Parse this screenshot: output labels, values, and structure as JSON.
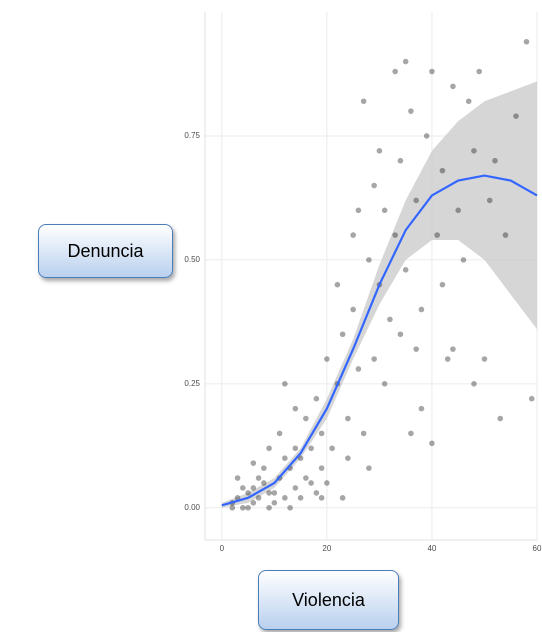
{
  "chart_data": {
    "type": "scatter",
    "y_label": "Denuncia",
    "x_label": "Violencia",
    "xlim": [
      -3.2,
      60
    ],
    "ylim": [
      -0.065,
      1.0
    ],
    "xticks": [
      0,
      20,
      40,
      60
    ],
    "yticks": [
      {
        "value": 0,
        "label": "0.00"
      },
      {
        "value": 0.25,
        "label": "0.25"
      },
      {
        "value": 0.5,
        "label": "0.50"
      },
      {
        "value": 0.75,
        "label": "0.75"
      }
    ],
    "grid": true,
    "point_color": "#000000",
    "line_color": "#3366ff",
    "band_color": "#c8c8c8",
    "points": {
      "x": [
        2,
        3,
        4,
        5,
        6,
        7,
        8,
        9,
        10,
        11,
        12,
        13,
        14,
        15,
        16,
        17,
        18,
        19,
        3,
        6,
        9,
        12,
        14,
        16,
        18,
        19,
        20,
        21,
        22,
        23,
        24,
        25,
        26,
        27,
        28,
        29,
        30,
        31,
        32,
        33,
        34,
        35,
        36,
        37,
        38,
        39,
        40,
        41,
        42,
        43,
        44,
        45,
        46,
        47,
        48,
        49,
        50,
        51,
        52,
        53,
        54,
        56,
        58,
        59,
        27,
        30,
        33,
        35,
        25,
        22,
        20,
        24,
        28,
        36,
        38,
        40,
        44,
        48,
        31,
        34,
        26,
        29,
        37,
        42,
        15,
        8,
        10,
        12,
        5,
        7,
        11,
        13,
        17,
        19,
        23,
        14,
        4,
        2,
        6,
        9
      ],
      "y": [
        0.01,
        0.02,
        0.0,
        0.03,
        0.01,
        0.02,
        0.05,
        0.0,
        0.03,
        0.06,
        0.02,
        0.08,
        0.04,
        0.1,
        0.06,
        0.12,
        0.03,
        0.15,
        0.06,
        0.09,
        0.12,
        0.25,
        0.2,
        0.18,
        0.22,
        0.08,
        0.3,
        0.12,
        0.25,
        0.35,
        0.18,
        0.4,
        0.28,
        0.15,
        0.5,
        0.3,
        0.45,
        0.6,
        0.38,
        0.55,
        0.7,
        0.48,
        0.8,
        0.62,
        0.4,
        0.75,
        0.88,
        0.55,
        0.68,
        0.3,
        0.85,
        0.6,
        0.5,
        0.82,
        0.72,
        0.88,
        0.3,
        0.62,
        0.7,
        0.18,
        0.55,
        0.79,
        0.94,
        0.22,
        0.82,
        0.72,
        0.88,
        0.9,
        0.55,
        0.45,
        0.05,
        0.1,
        0.08,
        0.15,
        0.2,
        0.13,
        0.32,
        0.25,
        0.25,
        0.35,
        0.6,
        0.65,
        0.32,
        0.45,
        0.02,
        0.08,
        0.01,
        0.1,
        0.0,
        0.06,
        0.15,
        0.0,
        0.05,
        0.02,
        0.02,
        0.12,
        0.04,
        0.0,
        0.04,
        0.03
      ]
    },
    "smooth": {
      "x": [
        0,
        5,
        10,
        15,
        20,
        25,
        30,
        35,
        40,
        45,
        50,
        55,
        60
      ],
      "y": [
        0.005,
        0.02,
        0.05,
        0.11,
        0.2,
        0.32,
        0.45,
        0.56,
        0.63,
        0.66,
        0.67,
        0.66,
        0.63
      ],
      "lower": [
        0,
        0.01,
        0.04,
        0.1,
        0.18,
        0.3,
        0.41,
        0.5,
        0.54,
        0.54,
        0.5,
        0.43,
        0.36
      ],
      "upper": [
        0.01,
        0.03,
        0.06,
        0.12,
        0.22,
        0.34,
        0.49,
        0.62,
        0.72,
        0.78,
        0.82,
        0.84,
        0.86
      ]
    }
  }
}
